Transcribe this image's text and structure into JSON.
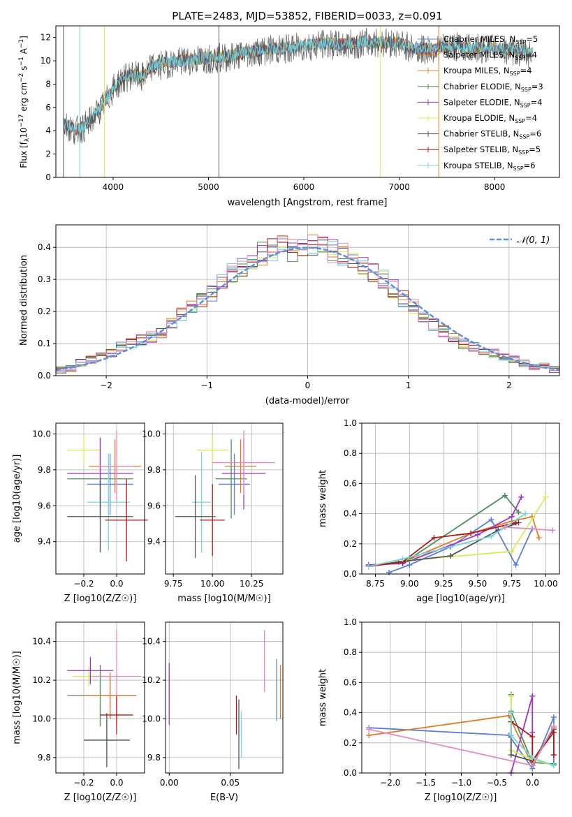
{
  "colors": {
    "Chabrier MILES": "#5B7FD6",
    "Salpeter MILES": "#E07B24",
    "Kroupa MILES": "#E9851F",
    "Chabrier ELODIE": "#4E8E5A",
    "Salpeter ELODIE": "#9B36C7",
    "Kroupa ELODIE": "#D8EB54",
    "Chabrier STELIB": "#555555",
    "Salpeter STELIB": "#B01818",
    "Kroupa STELIB": "#74D6DA",
    "extra pink": "#E58AC0",
    "normal curve": "#5B8FDB"
  },
  "panel1": {
    "title": "PLATE=2483, MJD=53852, FIBERID=0033, z=0.091",
    "xlabel": "wavelength [Angstrom, rest frame]",
    "ylabel": "Flux [f$_\\lambda$10$^{-17}$ erg cm$^{-2}$ s$^{-1}$ A$^{-1}$]",
    "ylabel_parts": [
      "Flux [f",
      "λ",
      "10",
      "−17",
      " erg cm",
      "−2",
      " s",
      "−1",
      " A",
      "−1",
      "]"
    ],
    "xticks": [
      "4000",
      "5000",
      "6000",
      "7000",
      "8000"
    ],
    "yticks": [
      "0",
      "2",
      "4",
      "6",
      "8",
      "10",
      "12"
    ],
    "legend": [
      {
        "name": "Chabrier MILES",
        "n": "5"
      },
      {
        "name": "Salpeter MILES",
        "n": "4"
      },
      {
        "name": "Kroupa MILES",
        "n": "4"
      },
      {
        "name": "Chabrier ELODIE",
        "n": "3"
      },
      {
        "name": "Salpeter ELODIE",
        "n": "4"
      },
      {
        "name": "Kroupa ELODIE",
        "n": "4"
      },
      {
        "name": "Chabrier STELIB",
        "n": "6"
      },
      {
        "name": "Salpeter STELIB",
        "n": "5"
      },
      {
        "name": "Kroupa STELIB",
        "n": "6"
      }
    ],
    "nssp_label": "N",
    "nssp_sub": "SSP"
  },
  "panel2": {
    "xlabel": "(data-model)/error",
    "ylabel": "Normed distribution",
    "xticks": [
      "−2",
      "−1",
      "0",
      "1",
      "2"
    ],
    "yticks": [
      "0.0",
      "0.1",
      "0.2",
      "0.3",
      "0.4"
    ],
    "legend": "𝒩(0, 1)"
  },
  "panel3": {
    "xlabel": "Z [log10(Z/Z☉)]",
    "ylabel": "age  [log10(age/yr)]",
    "xticks": [
      "−0.2",
      "0.0"
    ],
    "yticks": [
      "9.4",
      "9.6",
      "9.8",
      "10.0"
    ]
  },
  "panel4": {
    "xlabel": "mass [log10(M/M☉)]",
    "xticks": [
      "9.75",
      "10.00",
      "10.25"
    ],
    "yticks": [
      "9.4",
      "9.6",
      "9.8",
      "10.0"
    ]
  },
  "panel5": {
    "xlabel": "age  [log10(age/yr)]",
    "ylabel": "mass weight",
    "xticks": [
      "8.75",
      "9.00",
      "9.25",
      "9.50",
      "9.75",
      "10.00"
    ],
    "yticks": [
      "0.0",
      "0.2",
      "0.4",
      "0.6",
      "0.8",
      "1.0"
    ]
  },
  "panel6": {
    "xlabel": "Z [log10(Z/Z☉)]",
    "ylabel": "mass [log10(M/M☉)]",
    "xticks": [
      "−0.2",
      "0.0"
    ],
    "yticks": [
      "9.8",
      "10.0",
      "10.2",
      "10.4"
    ]
  },
  "panel7": {
    "xlabel": "E(B-V)",
    "xticks": [
      "0.00",
      "0.05"
    ],
    "yticks": [
      "9.8",
      "10.0",
      "10.2",
      "10.4"
    ]
  },
  "panel8": {
    "xlabel": "Z [log10(Z/Z☉)]",
    "ylabel": "mass weight",
    "xticks": [
      "−2.0",
      "−1.5",
      "−1.0",
      "−0.5",
      "0.0"
    ],
    "yticks": [
      "0.0",
      "0.2",
      "0.4",
      "0.6",
      "0.8",
      "1.0"
    ]
  },
  "chart_data": [
    {
      "type": "line",
      "title": "PLATE=2483, MJD=53852, FIBERID=0033, z=0.091",
      "xlabel": "wavelength [Angstrom, rest frame]",
      "ylabel": "Flux [fλ10−17 erg cm−2 s−1 A−1]",
      "xlim": [
        3400,
        8680
      ],
      "ylim": [
        0,
        13
      ],
      "x": [
        3480,
        3600,
        3700,
        3800,
        3900,
        4000,
        4100,
        4200,
        4300,
        4400,
        4600,
        4800,
        5000,
        5200,
        5400,
        5600,
        5800,
        6000,
        6200,
        6400,
        6600,
        6800,
        7000,
        7200,
        7400,
        7600,
        7800,
        8000,
        8200,
        8400
      ],
      "series": [
        {
          "name": "Chabrier STELIB",
          "values": [
            4.6,
            4.0,
            4.3,
            5.2,
            6.2,
            7.6,
            8.4,
            8.8,
            8.5,
            9.4,
            9.8,
            10.0,
            10.2,
            10.3,
            10.6,
            10.9,
            11.0,
            11.2,
            11.4,
            11.3,
            11.5,
            11.6,
            11.5,
            10.9,
            11.0,
            11.2,
            11.0,
            11.1,
            10.8,
            10.6
          ]
        },
        {
          "name": "Kroupa STELIB",
          "values": [
            4.7,
            4.1,
            4.4,
            5.3,
            6.3,
            7.7,
            8.5,
            8.9,
            8.6,
            9.5,
            9.9,
            10.1,
            10.3,
            10.4,
            10.7,
            11.0,
            11.1,
            11.3,
            11.5,
            11.4,
            11.6,
            11.6,
            11.5,
            11.0,
            11.1,
            11.2,
            11.1,
            11.1,
            10.9,
            10.7
          ]
        }
      ]
    },
    {
      "type": "bar",
      "xlabel": "(data-model)/error",
      "ylabel": "Normed distribution",
      "xlim": [
        -2.5,
        2.5
      ],
      "ylim": [
        0,
        0.47
      ],
      "bin_width": 0.1,
      "bin_starts": [
        -2.5,
        -2.4,
        -2.3,
        -2.2,
        -2.1,
        -2.0,
        -1.9,
        -1.8,
        -1.7,
        -1.6,
        -1.5,
        -1.4,
        -1.3,
        -1.2,
        -1.1,
        -1.0,
        -0.9,
        -0.8,
        -0.7,
        -0.6,
        -0.5,
        -0.4,
        -0.3,
        -0.2,
        -0.1,
        0.0,
        0.1,
        0.2,
        0.3,
        0.4,
        0.5,
        0.6,
        0.7,
        0.8,
        0.9,
        1.0,
        1.1,
        1.2,
        1.3,
        1.4,
        1.5,
        1.6,
        1.7,
        1.8,
        1.9,
        2.0,
        2.1,
        2.2,
        2.3,
        2.4
      ],
      "values": [
        0.018,
        0.022,
        0.04,
        0.05,
        0.06,
        0.07,
        0.09,
        0.1,
        0.11,
        0.12,
        0.13,
        0.16,
        0.19,
        0.21,
        0.24,
        0.26,
        0.29,
        0.32,
        0.34,
        0.36,
        0.38,
        0.39,
        0.4,
        0.39,
        0.4,
        0.41,
        0.4,
        0.39,
        0.38,
        0.36,
        0.34,
        0.32,
        0.3,
        0.27,
        0.24,
        0.22,
        0.19,
        0.16,
        0.14,
        0.12,
        0.1,
        0.09,
        0.08,
        0.07,
        0.06,
        0.05,
        0.04,
        0.03,
        0.03,
        0.02
      ],
      "legend": "𝒩(0, 1)",
      "normal_curve": {
        "mean": 0,
        "sigma": 1
      }
    },
    {
      "type": "scatter",
      "xlabel": "Z [log10(Z/Z☉)]",
      "ylabel": "age  [log10(age/yr)]",
      "xlim": [
        -0.37,
        0.17
      ],
      "ylim": [
        9.22,
        10.06
      ],
      "points": [
        {
          "x": -0.2,
          "y": 9.91,
          "xerr": 0.1,
          "yerr": 0.08,
          "c": "Kroupa ELODIE"
        },
        {
          "x": -0.1,
          "y": 9.75,
          "xerr": 0.2,
          "yerr": 0.22,
          "c": "Chabrier ELODIE"
        },
        {
          "x": -0.1,
          "y": 9.78,
          "xerr": 0.2,
          "yerr": 0.2,
          "c": "Salpeter ELODIE"
        },
        {
          "x": -0.04,
          "y": 9.72,
          "xerr": 0.14,
          "yerr": 0.17,
          "c": "Chabrier MILES"
        },
        {
          "x": -0.01,
          "y": 9.82,
          "xerr": 0.16,
          "yerr": 0.15,
          "c": "Salpeter MILES"
        },
        {
          "x": 0.0,
          "y": 9.82,
          "xerr": 0.1,
          "yerr": 0.2,
          "c": "extra pink"
        },
        {
          "x": -0.05,
          "y": 9.62,
          "xerr": 0.13,
          "yerr": 0.27,
          "c": "Kroupa STELIB"
        },
        {
          "x": -0.1,
          "y": 9.54,
          "xerr": 0.2,
          "yerr": 0.2,
          "c": "Chabrier STELIB"
        },
        {
          "x": 0.06,
          "y": 9.52,
          "xerr": 0.13,
          "yerr": 0.23,
          "c": "Salpeter STELIB"
        }
      ]
    },
    {
      "type": "scatter",
      "xlabel": "mass [log10(M/M☉)]",
      "xlim": [
        9.7,
        10.45
      ],
      "ylim": [
        9.22,
        10.06
      ],
      "points": [
        {
          "x": 10.0,
          "y": 9.91,
          "xerr": 0.1,
          "yerr": 0.07,
          "c": "Kroupa ELODIE"
        },
        {
          "x": 10.12,
          "y": 9.75,
          "xerr": 0.1,
          "yerr": 0.22,
          "c": "Chabrier ELODIE"
        },
        {
          "x": 10.2,
          "y": 9.78,
          "xerr": 0.14,
          "yerr": 0.2,
          "c": "Salpeter ELODIE"
        },
        {
          "x": 10.14,
          "y": 9.72,
          "xerr": 0.1,
          "yerr": 0.17,
          "c": "Chabrier MILES"
        },
        {
          "x": 10.18,
          "y": 9.82,
          "xerr": 0.1,
          "yerr": 0.15,
          "c": "Salpeter MILES"
        },
        {
          "x": 10.2,
          "y": 9.84,
          "xerr": 0.2,
          "yerr": 0.18,
          "c": "extra pink"
        },
        {
          "x": 9.93,
          "y": 9.62,
          "xerr": 0.06,
          "yerr": 0.28,
          "c": "Kroupa STELIB"
        },
        {
          "x": 9.89,
          "y": 9.54,
          "xerr": 0.13,
          "yerr": 0.23,
          "c": "Chabrier STELIB"
        },
        {
          "x": 10.0,
          "y": 9.52,
          "xerr": 0.08,
          "yerr": 0.2,
          "c": "Salpeter STELIB"
        }
      ]
    },
    {
      "type": "line",
      "xlabel": "age  [log10(age/yr)]",
      "ylabel": "mass weight",
      "xlim": [
        8.65,
        10.1
      ],
      "ylim": [
        0,
        1
      ],
      "series": [
        {
          "name": "Chabrier MILES",
          "c": "Chabrier MILES",
          "x": [
            8.85,
            9.0,
            9.3,
            9.6,
            9.78,
            9.9
          ],
          "y": [
            0.01,
            0.06,
            0.18,
            0.36,
            0.06,
            0.3
          ]
        },
        {
          "name": "Salpeter MILES",
          "c": "Salpeter MILES",
          "x": [
            8.7,
            8.95,
            9.45,
            9.75,
            9.9,
            9.95
          ],
          "y": [
            0.05,
            0.08,
            0.27,
            0.35,
            0.38,
            0.24
          ]
        },
        {
          "name": "Chabrier ELODIE",
          "c": "Chabrier ELODIE",
          "x": [
            8.7,
            8.95,
            9.7,
            9.8
          ],
          "y": [
            0.06,
            0.07,
            0.52,
            0.41
          ]
        },
        {
          "name": "Salpeter ELODIE",
          "c": "Salpeter ELODIE",
          "x": [
            8.7,
            8.95,
            9.5,
            9.75,
            9.82
          ],
          "y": [
            0.06,
            0.07,
            0.26,
            0.38,
            0.51
          ]
        },
        {
          "name": "Kroupa ELODIE",
          "c": "Kroupa ELODIE",
          "x": [
            8.7,
            8.98,
            9.75,
            10.0
          ],
          "y": [
            0.05,
            0.09,
            0.15,
            0.51
          ]
        },
        {
          "name": "Chabrier STELIB",
          "c": "Chabrier STELIB",
          "x": [
            8.7,
            8.92,
            9.3,
            9.65,
            9.8
          ],
          "y": [
            0.05,
            0.08,
            0.12,
            0.29,
            0.34
          ]
        },
        {
          "name": "Salpeter STELIB",
          "c": "Salpeter STELIB",
          "x": [
            8.7,
            8.95,
            9.18,
            9.45,
            9.78
          ],
          "y": [
            0.05,
            0.08,
            0.24,
            0.27,
            0.34
          ]
        },
        {
          "name": "Kroupa STELIB",
          "c": "Kroupa STELIB",
          "x": [
            8.7,
            8.95,
            9.6,
            9.85
          ],
          "y": [
            0.05,
            0.1,
            0.25,
            0.4
          ]
        },
        {
          "name": "extra pink",
          "c": "extra pink",
          "x": [
            9.7,
            10.05
          ],
          "y": [
            0.31,
            0.29
          ]
        }
      ]
    },
    {
      "type": "scatter",
      "xlabel": "Z [log10(Z/Z☉)]",
      "ylabel": "mass [log10(M/M☉)]",
      "xlim": [
        -0.37,
        0.17
      ],
      "ylim": [
        9.72,
        10.5
      ],
      "points": [
        {
          "x": -0.17,
          "y": 10.22,
          "xerr": 0.1,
          "yerr": 0.05,
          "c": "Kroupa ELODIE"
        },
        {
          "x": -0.1,
          "y": 10.12,
          "xerr": 0.2,
          "yerr": 0.16,
          "c": "Chabrier ELODIE"
        },
        {
          "x": -0.16,
          "y": 10.25,
          "xerr": 0.14,
          "yerr": 0.07,
          "c": "Salpeter ELODIE"
        },
        {
          "x": -0.04,
          "y": 10.12,
          "xerr": 0.16,
          "yerr": 0.12,
          "c": "Chabrier MILES"
        },
        {
          "x": -0.04,
          "y": 10.12,
          "xerr": 0.16,
          "yerr": 0.12,
          "c": "Salpeter MILES"
        },
        {
          "x": 0.0,
          "y": 10.22,
          "xerr": 0.15,
          "yerr": 0.24,
          "c": "extra pink"
        },
        {
          "x": -0.06,
          "y": 9.89,
          "xerr": 0.14,
          "yerr": 0.1,
          "c": "Kroupa STELIB"
        },
        {
          "x": -0.06,
          "y": 9.89,
          "xerr": 0.14,
          "yerr": 0.14,
          "c": "Chabrier STELIB"
        },
        {
          "x": 0.0,
          "y": 10.02,
          "xerr": 0.1,
          "yerr": 0.1,
          "c": "Salpeter STELIB"
        }
      ]
    },
    {
      "type": "scatter",
      "xlabel": "E(B-V)",
      "xlim": [
        -0.003,
        0.093
      ],
      "ylim": [
        9.72,
        10.5
      ],
      "points": [
        {
          "x": 0.0,
          "y": 10.2,
          "yerr": 0.08,
          "c": "Kroupa ELODIE"
        },
        {
          "x": 0.0,
          "y": 10.13,
          "yerr": 0.16,
          "c": "Salpeter ELODIE"
        },
        {
          "x": 0.055,
          "y": 10.02,
          "yerr": 0.1,
          "c": "Salpeter STELIB"
        },
        {
          "x": 0.057,
          "y": 9.92,
          "yerr": 0.18,
          "c": "Chabrier STELIB"
        },
        {
          "x": 0.059,
          "y": 9.92,
          "yerr": 0.12,
          "c": "Kroupa STELIB"
        },
        {
          "x": 0.078,
          "y": 10.3,
          "yerr": 0.16,
          "c": "extra pink"
        },
        {
          "x": 0.088,
          "y": 10.15,
          "yerr": 0.16,
          "c": "Chabrier MILES"
        },
        {
          "x": 0.091,
          "y": 10.14,
          "yerr": 0.14,
          "c": "Salpeter MILES"
        }
      ]
    },
    {
      "type": "line",
      "xlabel": "Z [log10(Z/Z☉)]",
      "ylabel": "mass weight",
      "xlim": [
        -2.4,
        0.38
      ],
      "ylim": [
        0,
        1
      ],
      "series": [
        {
          "name": "Chabrier MILES",
          "c": "Chabrier MILES",
          "x": [
            -2.3,
            -0.33,
            0.0,
            0.3,
            0.3
          ],
          "y": [
            0.3,
            0.25,
            0.03,
            0.37,
            0.06
          ]
        },
        {
          "name": "Salpeter MILES",
          "c": "Salpeter MILES",
          "x": [
            -2.3,
            -0.33,
            0.0,
            0.3
          ],
          "y": [
            0.25,
            0.38,
            0.05,
            0.3
          ]
        },
        {
          "name": "Chabrier ELODIE",
          "c": "Chabrier ELODIE",
          "x": [
            -0.3,
            -0.3,
            0.0,
            0.3
          ],
          "y": [
            0.52,
            0.41,
            0.07,
            0.06
          ]
        },
        {
          "name": "Salpeter ELODIE",
          "c": "Salpeter ELODIE",
          "x": [
            -0.3,
            0.0,
            0.0,
            0.0
          ],
          "y": [
            0.0,
            0.51,
            0.27,
            0.05
          ]
        },
        {
          "name": "Kroupa ELODIE",
          "c": "Kroupa ELODIE",
          "x": [
            -0.3,
            -0.3,
            0.0,
            0.3
          ],
          "y": [
            0.51,
            0.15,
            0.09,
            0.05
          ]
        },
        {
          "name": "Chabrier STELIB",
          "c": "Chabrier STELIB",
          "x": [
            -0.3,
            -0.3,
            0.0,
            0.3
          ],
          "y": [
            0.34,
            0.12,
            0.08,
            0.29
          ]
        },
        {
          "name": "Salpeter STELIB",
          "c": "Salpeter STELIB",
          "x": [
            -0.3,
            0.0,
            0.0,
            0.3,
            0.3
          ],
          "y": [
            0.34,
            0.24,
            0.08,
            0.27,
            0.12
          ]
        },
        {
          "name": "Kroupa STELIB",
          "c": "Kroupa STELIB",
          "x": [
            -0.3,
            -0.3,
            0.0,
            0.3
          ],
          "y": [
            0.4,
            0.25,
            0.1,
            0.05
          ]
        },
        {
          "name": "extra pink",
          "c": "extra pink",
          "x": [
            -2.3,
            0.0,
            0.3
          ],
          "y": [
            0.29,
            0.05,
            0.31
          ]
        }
      ]
    }
  ]
}
